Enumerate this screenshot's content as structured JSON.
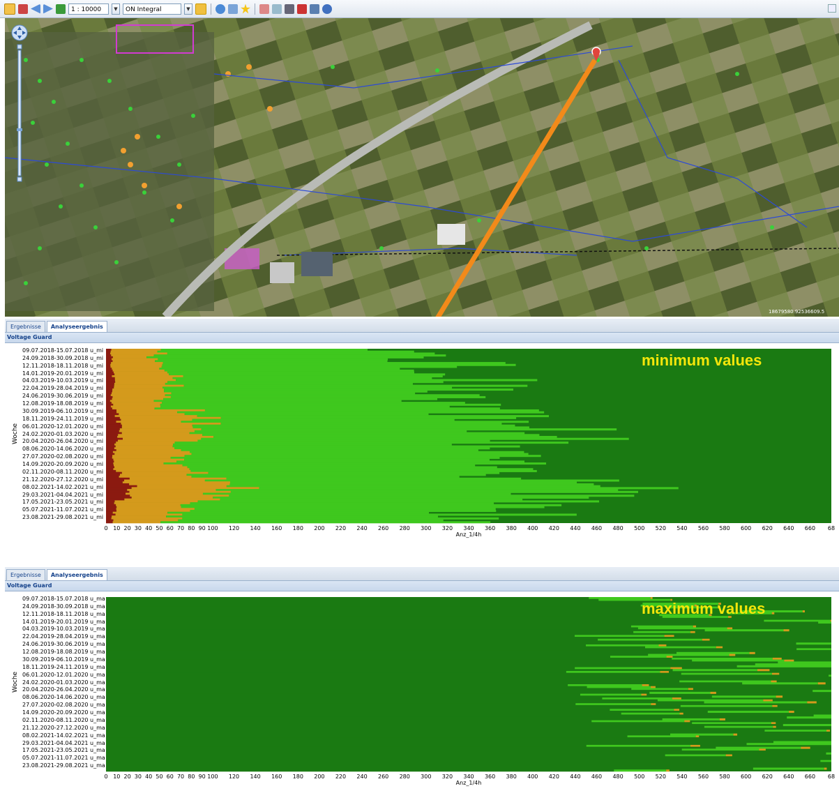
{
  "toolbar": {
    "scale_value": "1 : 10000",
    "layer_value": "ON Integral",
    "icons": [
      "hand-icon",
      "home-icon",
      "back-icon",
      "forward-icon",
      "layers-icon",
      "refresh-icon",
      "print-icon",
      "export-icon",
      "search-icon"
    ]
  },
  "map": {
    "coordinate_readout": "18679580.92536609.5",
    "accent_orange": "#f28a1a",
    "marker_red": "#e0453c"
  },
  "panels": [
    {
      "tab_results": "Ergebnisse",
      "tab_analysis": "Analyseergebnis",
      "title": "Voltage Guard",
      "overlay": "minimum values",
      "y_title": "Woche",
      "x_title": "Anz_1/4h",
      "week_suffix": "u_mi",
      "x_ticks": [
        "0",
        "10",
        "20",
        "30",
        "40",
        "50",
        "60",
        "70",
        "80",
        "90",
        "100",
        "120",
        "140",
        "160",
        "180",
        "200",
        "220",
        "240",
        "260",
        "280",
        "300",
        "320",
        "340",
        "360",
        "380",
        "400",
        "420",
        "440",
        "460",
        "480",
        "500",
        "520",
        "540",
        "560",
        "580",
        "600",
        "620",
        "640",
        "660",
        "68"
      ]
    },
    {
      "tab_results": "Ergebnisse",
      "tab_analysis": "Analyseergebnis",
      "title": "Voltage Guard",
      "overlay": "maximum values",
      "y_title": "Woche",
      "x_title": "Anz_1/4h",
      "week_suffix": "u_ma",
      "x_ticks": [
        "0",
        "10",
        "20",
        "30",
        "40",
        "50",
        "60",
        "70",
        "80",
        "90",
        "100",
        "120",
        "140",
        "160",
        "180",
        "200",
        "220",
        "240",
        "260",
        "280",
        "300",
        "320",
        "340",
        "360",
        "380",
        "400",
        "420",
        "440",
        "460",
        "480",
        "500",
        "520",
        "540",
        "560",
        "580",
        "600",
        "620",
        "640",
        "660",
        "68"
      ]
    }
  ],
  "week_labels": [
    "09.07.2018-15.07.2018",
    "24.09.2018-30.09.2018",
    "12.11.2018-18.11.2018",
    "14.01.2019-20.01.2019",
    "04.03.2019-10.03.2019",
    "22.04.2019-28.04.2019",
    "24.06.2019-30.06.2019",
    "12.08.2019-18.08.2019",
    "30.09.2019-06.10.2019",
    "18.11.2019-24.11.2019",
    "06.01.2020-12.01.2020",
    "24.02.2020-01.03.2020",
    "20.04.2020-26.04.2020",
    "08.06.2020-14.06.2020",
    "27.07.2020-02.08.2020",
    "14.09.2020-20.09.2020",
    "02.11.2020-08.11.2020",
    "21.12.2020-27.12.2020",
    "08.02.2021-14.02.2021",
    "29.03.2021-04.04.2021",
    "17.05.2021-23.05.2021",
    "05.07.2021-11.07.2021",
    "23.08.2021-29.08.2021"
  ],
  "chart_data": [
    {
      "type": "bar",
      "orientation": "horizontal-stacked",
      "ylabel": "Woche",
      "xlabel": "Anz_1/4h",
      "xlim": [
        0,
        680
      ],
      "colors": {
        "dark_red": "#8b1a10",
        "orange": "#d49a1c",
        "light_green": "#3fc81e",
        "dark_green": "#1a7a12"
      },
      "stack_order": [
        "dark_red",
        "orange",
        "light_green",
        "dark_green"
      ],
      "description_values_per_week": "approx boundaries in Anz_1/4h units",
      "series": [
        {
          "name": "dark_red",
          "values": [
            5,
            6,
            5,
            7,
            8,
            6,
            5,
            6,
            10,
            12,
            15,
            14,
            10,
            8,
            6,
            7,
            12,
            18,
            25,
            20,
            10,
            8,
            6
          ]
        },
        {
          "name": "orange",
          "values": [
            45,
            40,
            50,
            55,
            60,
            50,
            45,
            50,
            70,
            80,
            85,
            80,
            70,
            60,
            55,
            60,
            75,
            90,
            100,
            95,
            70,
            60,
            55
          ]
        },
        {
          "name": "light_green",
          "values": [
            240,
            260,
            270,
            280,
            300,
            280,
            250,
            260,
            300,
            320,
            340,
            330,
            310,
            290,
            280,
            290,
            330,
            360,
            380,
            370,
            320,
            300,
            280
          ]
        }
      ]
    },
    {
      "type": "bar",
      "orientation": "horizontal-stacked",
      "ylabel": "Woche",
      "xlabel": "Anz_1/4h",
      "xlim": [
        0,
        680
      ],
      "colors": {
        "dark_green": "#1a7a12",
        "light_green": "#3fc81e",
        "orange": "#d49a1c",
        "dark_red": "#8b1a10"
      },
      "stack_order": [
        "dark_green",
        "light_green",
        "orange",
        "dark_red"
      ],
      "series": [
        {
          "name": "dark_green",
          "values": [
            600,
            620,
            610,
            600,
            580,
            560,
            570,
            580,
            560,
            550,
            560,
            570,
            580,
            560,
            570,
            590,
            580,
            600,
            590,
            560,
            580,
            600,
            610
          ]
        },
        {
          "name": "light_green",
          "values": [
            60,
            50,
            55,
            60,
            70,
            80,
            75,
            70,
            80,
            85,
            80,
            75,
            70,
            80,
            75,
            65,
            70,
            60,
            65,
            80,
            70,
            60,
            55
          ]
        },
        {
          "name": "orange",
          "values": [
            2,
            2,
            3,
            3,
            5,
            8,
            6,
            5,
            10,
            10,
            8,
            6,
            5,
            8,
            6,
            4,
            5,
            3,
            4,
            10,
            6,
            4,
            3
          ]
        }
      ]
    }
  ]
}
